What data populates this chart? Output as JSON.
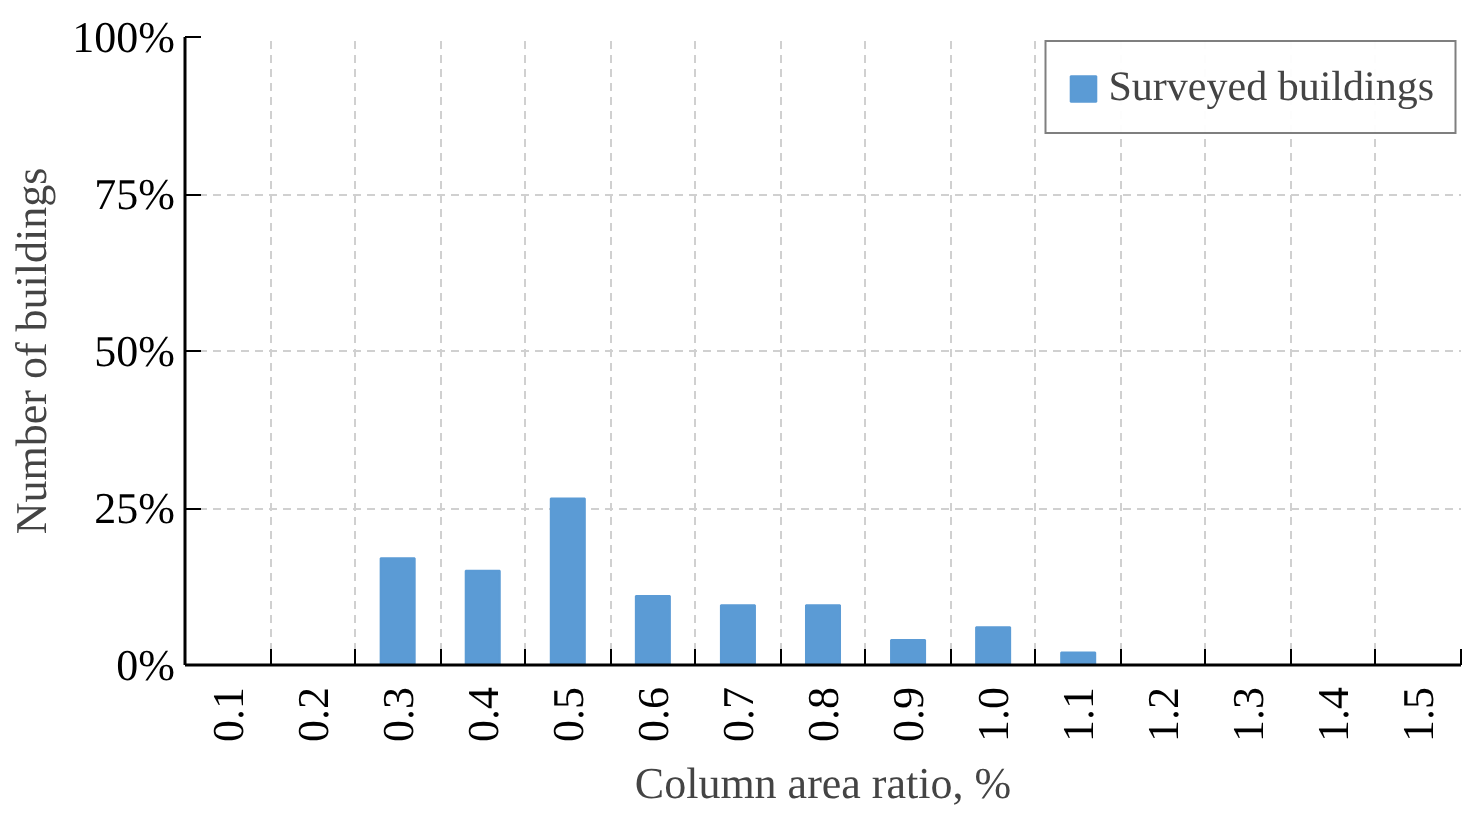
{
  "chart_data": {
    "type": "bar",
    "xlabel": "Column area ratio, %",
    "ylabel": "Number of buildings",
    "categories": [
      "0.1",
      "0.2",
      "0.3",
      "0.4",
      "0.5",
      "0.6",
      "0.7",
      "0.8",
      "0.9",
      "1.0",
      "1.1",
      "1.2",
      "1.3",
      "1.4",
      "1.5"
    ],
    "series": [
      {
        "name": "Surveyed buildings",
        "color": "#5b9bd5",
        "values": [
          0,
          0,
          17,
          15,
          26.5,
          11,
          9.5,
          9.5,
          4,
          6,
          2,
          0,
          0,
          0,
          0
        ]
      }
    ],
    "ylim": [
      0,
      100
    ],
    "yticks": [
      {
        "value": 0,
        "label": "0%"
      },
      {
        "value": 25,
        "label": "25%"
      },
      {
        "value": 50,
        "label": "50%"
      },
      {
        "value": 75,
        "label": "75%"
      },
      {
        "value": 100,
        "label": "100%"
      }
    ],
    "grid": true,
    "legend": "top right"
  }
}
